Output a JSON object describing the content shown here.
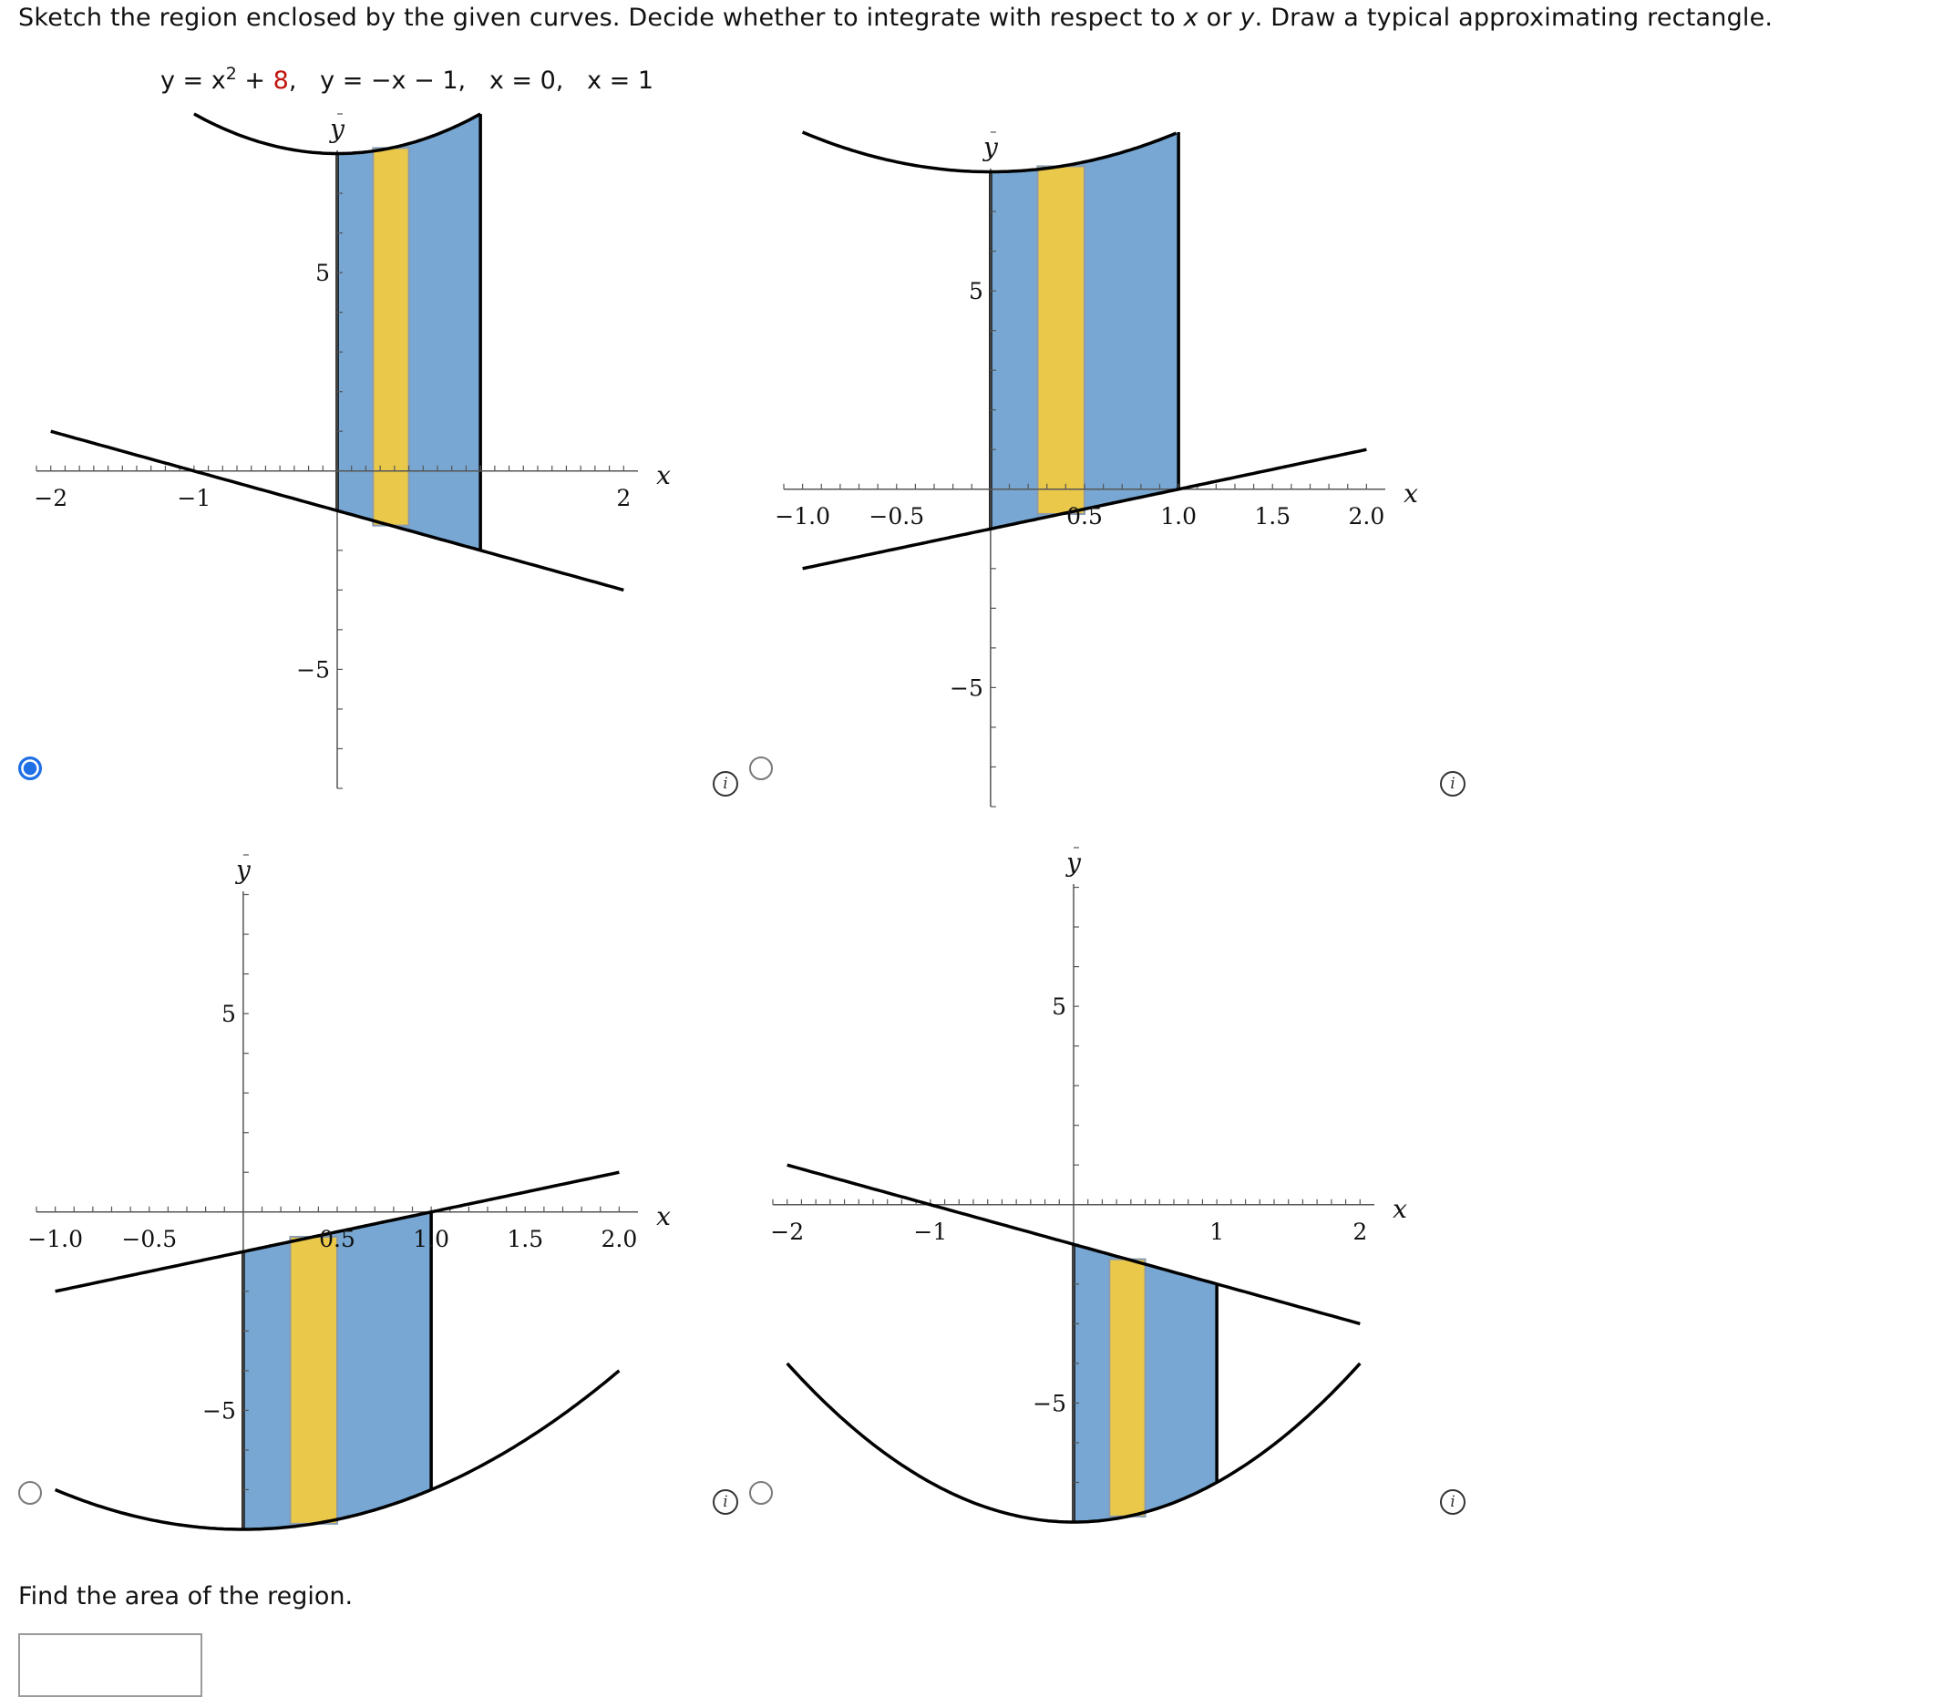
{
  "question": {
    "text_parts": [
      "Sketch the region enclosed by the given curves. Decide whether to integrate with respect to ",
      "x",
      " or ",
      "y",
      ". Draw a typical approximating rectangle."
    ]
  },
  "equations": {
    "eq1_a": "y = x",
    "eq1_exp": "2",
    "eq1_b": " + ",
    "eq1_const": "8",
    "eq1_c": ",   y = −x − 1,   x = 0,   x = 1"
  },
  "colors": {
    "region_fill": "#77a7d2",
    "rectangle_fill": "#eac84a",
    "curve": "#000000",
    "radio_selected": "#1f6fe5",
    "constant_red": "#c0140c"
  },
  "options": [
    {
      "selected": true,
      "chart_data": {
        "type": "region-sketch",
        "x_label": "x",
        "y_label": "y",
        "x_ticks": [
          "-2",
          "-1",
          "2"
        ],
        "y_ticks": [
          "5",
          "-5"
        ],
        "xlim": [
          -2.1,
          2.1
        ],
        "ylim": [
          -8,
          9
        ],
        "upper_curve": "y = x^2 + 8",
        "lower_curve": "y = -x - 1",
        "region_x": [
          0,
          1
        ],
        "rectangle_x": [
          0.25,
          0.5
        ]
      }
    },
    {
      "selected": false,
      "chart_data": {
        "type": "region-sketch",
        "x_label": "x",
        "y_label": "y",
        "x_ticks": [
          "-1.0",
          "-0.5",
          "0.5",
          "1.0",
          "1.5",
          "2.0"
        ],
        "y_ticks": [
          "5",
          "-5"
        ],
        "xlim": [
          -1.1,
          2.1
        ],
        "ylim": [
          -8,
          9
        ],
        "upper_curve": "y = x^2 + 8",
        "lower_curve": "y = x - 1",
        "region_x": [
          0,
          1
        ],
        "rectangle_x": [
          0.25,
          0.5
        ]
      }
    },
    {
      "selected": false,
      "chart_data": {
        "type": "region-sketch",
        "x_label": "x",
        "y_label": "y",
        "x_ticks": [
          "-1.0",
          "-0.5",
          "0.5",
          "1.0",
          "1.5",
          "2.0"
        ],
        "y_ticks": [
          "5",
          "-5"
        ],
        "xlim": [
          -1.1,
          2.1
        ],
        "ylim": [
          -8,
          9
        ],
        "upper_curve": "y = x - 1",
        "lower_curve": "y = x^2 - 8",
        "region_x": [
          0,
          1
        ],
        "rectangle_x": [
          0.25,
          0.5
        ]
      }
    },
    {
      "selected": false,
      "chart_data": {
        "type": "region-sketch",
        "x_label": "x",
        "y_label": "y",
        "x_ticks": [
          "-2",
          "-1",
          "1",
          "2"
        ],
        "y_ticks": [
          "5",
          "-5"
        ],
        "xlim": [
          -2.1,
          2.1
        ],
        "ylim": [
          -8,
          9
        ],
        "upper_curve": "y = -x - 1",
        "lower_curve": "y = x^2 - 8",
        "region_x": [
          0,
          1
        ],
        "rectangle_x": [
          0.25,
          0.5
        ]
      }
    }
  ],
  "info_label": "i",
  "find": {
    "text": "Find the area of the region."
  },
  "answer": {
    "value": ""
  }
}
